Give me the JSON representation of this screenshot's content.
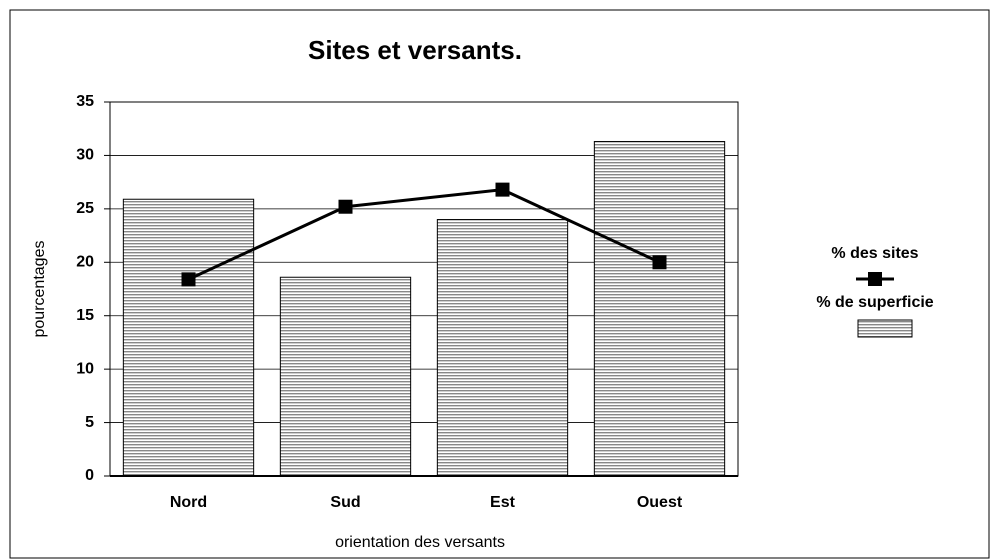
{
  "chart_data": {
    "type": "combo",
    "title": "Sites et versants.",
    "x_label": "orientation des versants",
    "y_label": "pourcentages",
    "categories": [
      "Nord",
      "Sud",
      "Est",
      "Ouest"
    ],
    "series": [
      {
        "name": "% des sites",
        "type": "line",
        "color": "#000000",
        "values": [
          18.4,
          25.2,
          26.8,
          20.0
        ]
      },
      {
        "name": "% de superficie",
        "type": "bar",
        "color": "#c0c0c0",
        "values": [
          25.9,
          18.6,
          24.0,
          31.3
        ]
      }
    ],
    "ylim": [
      0,
      35
    ],
    "yticks": [
      0,
      5,
      10,
      15,
      20,
      25,
      30,
      35
    ],
    "grid": true,
    "legend": "right"
  }
}
